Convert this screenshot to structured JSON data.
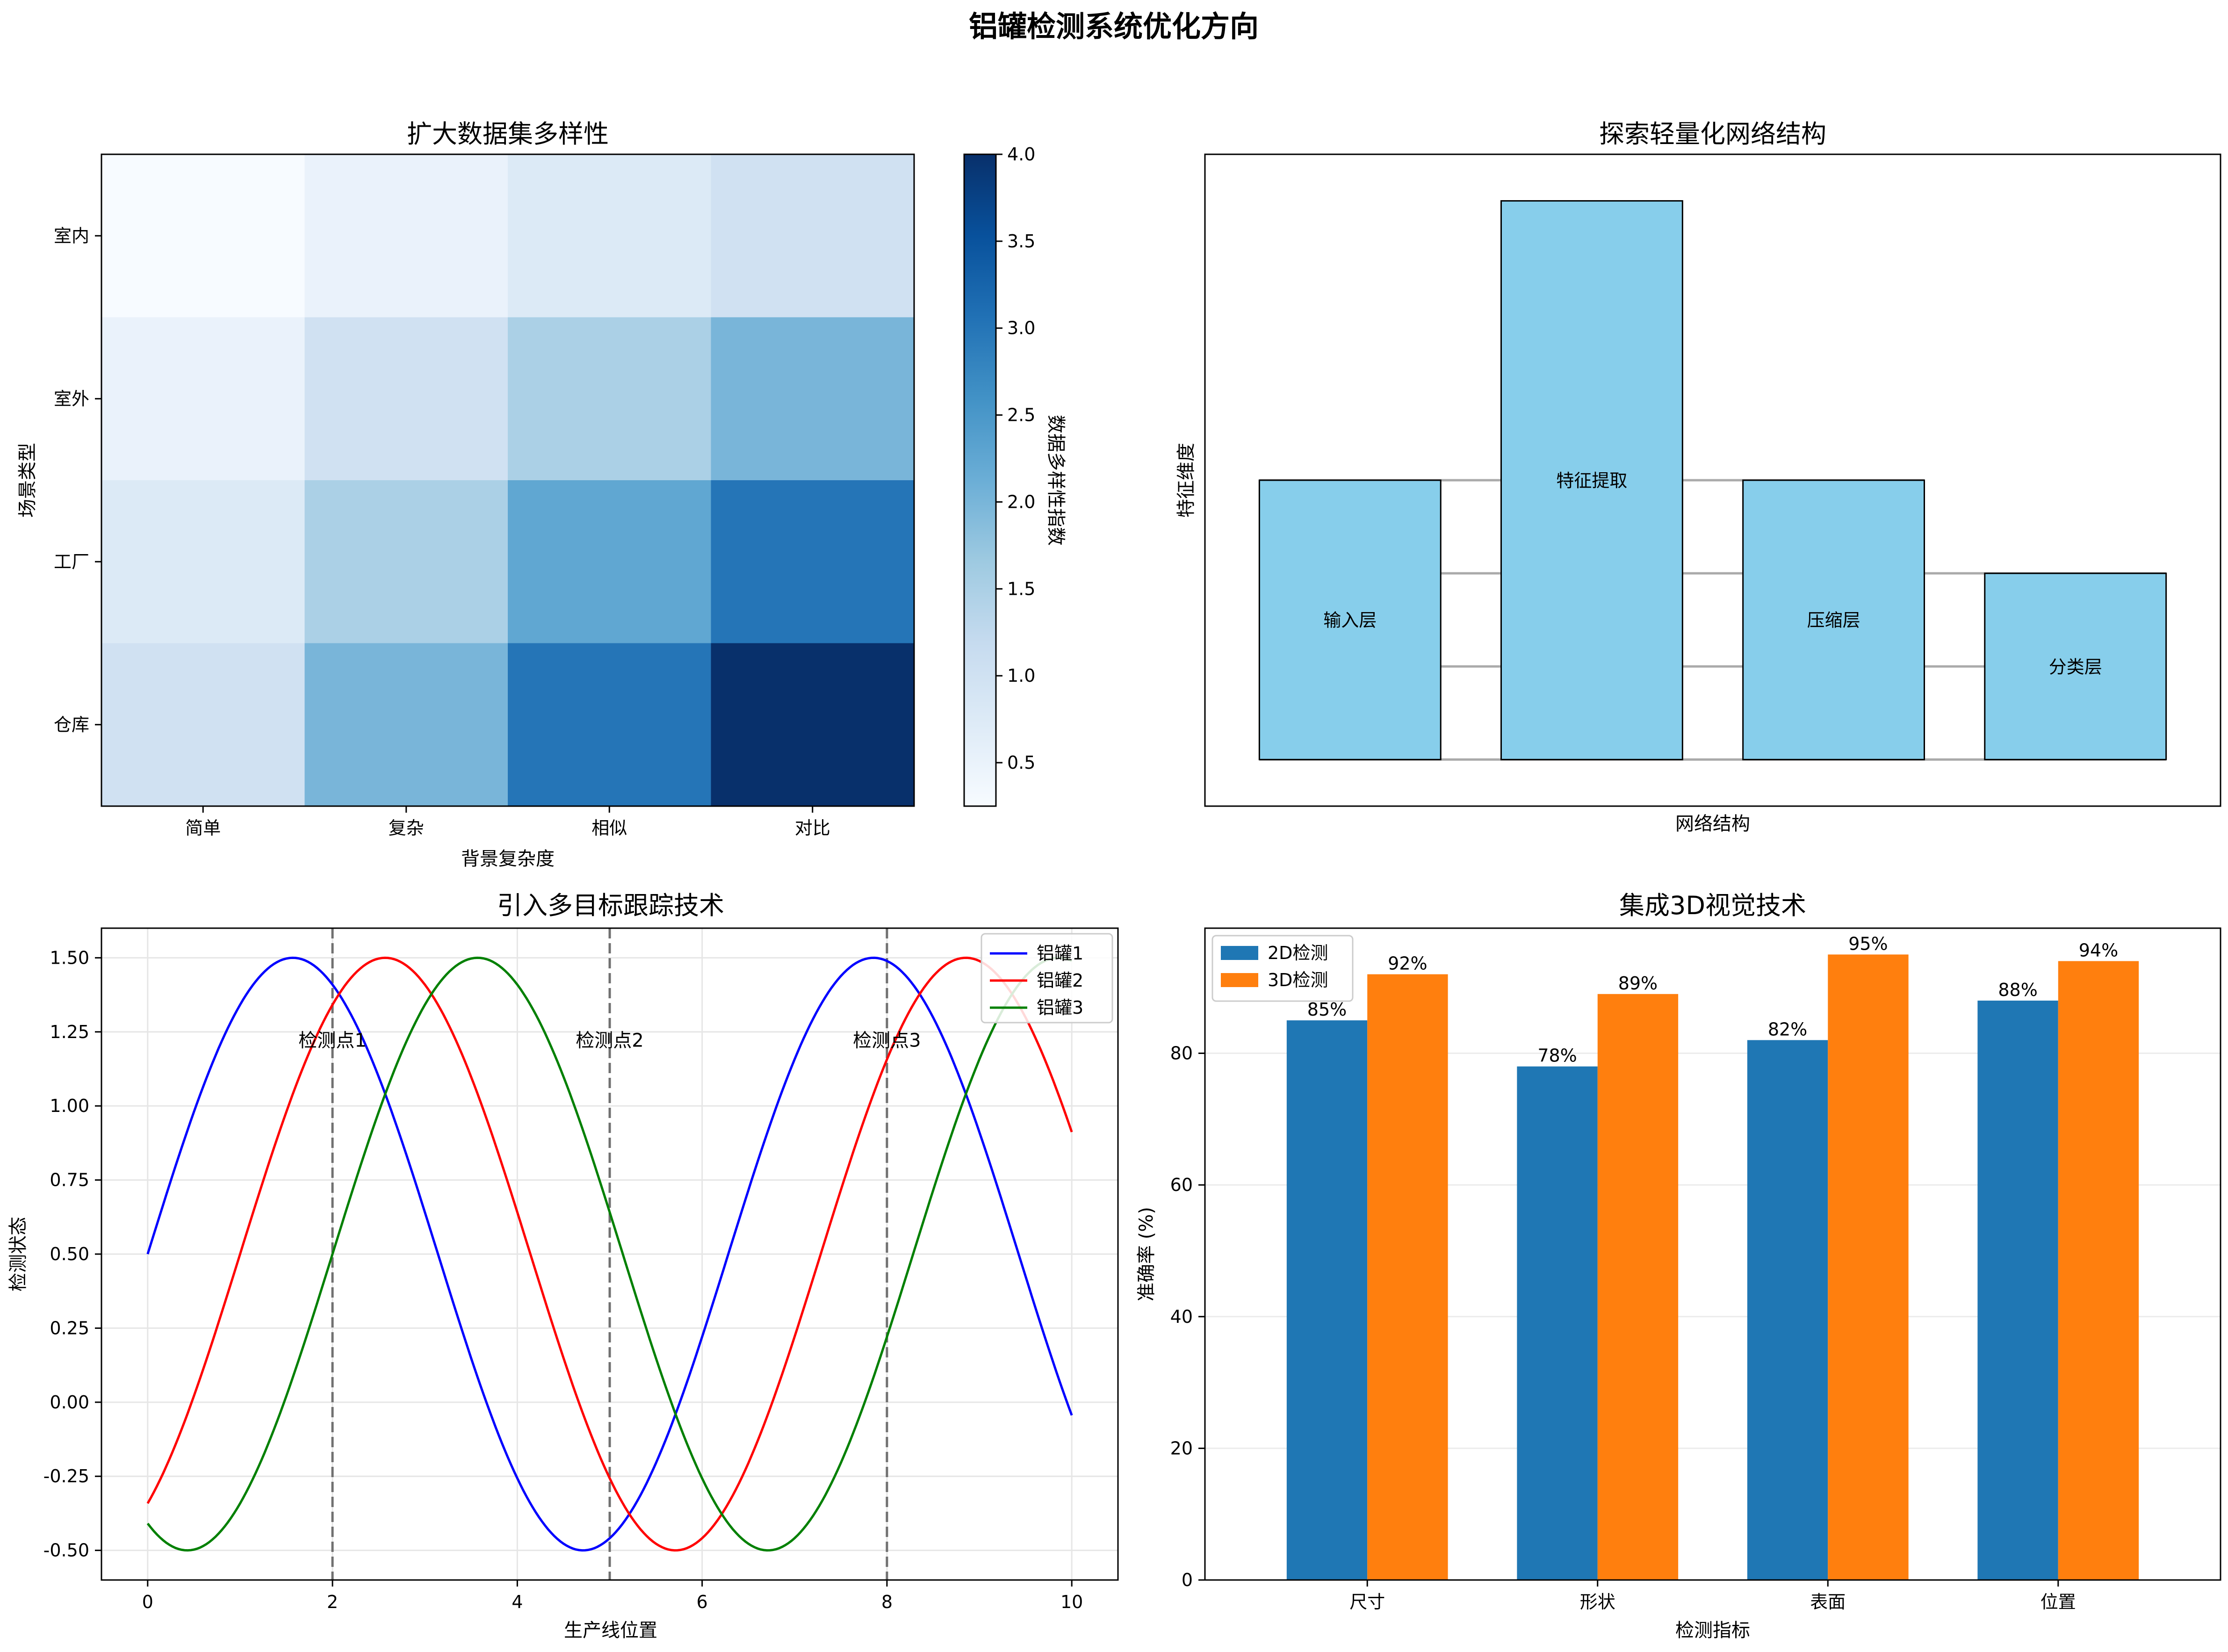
{
  "figure": {
    "title": "铝罐检测系统优化方向"
  },
  "chart_data": [
    {
      "type": "heatmap",
      "title": "扩大数据集多样性",
      "xlabel": "背景复杂度",
      "ylabel": "场景类型",
      "x_categories": [
        "简单",
        "复杂",
        "相似",
        "对比"
      ],
      "y_categories": [
        "室内",
        "室外",
        "工厂",
        "仓库"
      ],
      "values": [
        [
          0.25,
          0.5,
          0.75,
          1.0
        ],
        [
          0.5,
          1.0,
          1.5,
          2.0
        ],
        [
          0.75,
          1.5,
          2.25,
          3.0
        ],
        [
          1.0,
          2.0,
          3.0,
          4.0
        ]
      ],
      "colorbar": {
        "label": "数据多样性指数",
        "range": [
          0.25,
          4.0
        ],
        "ticks": [
          "0.5",
          "1.0",
          "1.5",
          "2.0",
          "2.5",
          "3.0",
          "3.5",
          "4.0"
        ],
        "tick_values": [
          0.5,
          1.0,
          1.5,
          2.0,
          2.5,
          3.0,
          3.5,
          4.0
        ]
      }
    },
    {
      "type": "bar",
      "title": "探索轻量化网络结构",
      "xlabel": "网络结构",
      "ylabel": "特征维度",
      "categories": [
        "输入层",
        "特征提取",
        "压缩层",
        "分类层"
      ],
      "values": [
        3,
        6,
        3,
        2
      ],
      "ylim": [
        -0.5,
        6.5
      ],
      "bar_color": "#87ceeb",
      "edge_color": "#000000",
      "connector_color": "#aaaaaa"
    },
    {
      "type": "line",
      "title": "引入多目标跟踪技术",
      "xlabel": "生产线位置",
      "ylabel": "检测状态",
      "xlim": [
        -0.5,
        10.5
      ],
      "ylim": [
        -0.6,
        1.6
      ],
      "x_ticks": [
        "0",
        "2",
        "4",
        "6",
        "8",
        "10"
      ],
      "x_tick_values": [
        0,
        2,
        4,
        6,
        8,
        10
      ],
      "y_ticks": [
        "-0.50",
        "-0.25",
        "0.00",
        "0.25",
        "0.50",
        "0.75",
        "1.00",
        "1.25",
        "1.50"
      ],
      "y_tick_values": [
        -0.5,
        -0.25,
        0,
        0.25,
        0.5,
        0.75,
        1.0,
        1.25,
        1.5
      ],
      "x_range": [
        0,
        10
      ],
      "series": [
        {
          "name": "铝罐1",
          "color": "#0000ff",
          "offset": 0,
          "amplitude": 1,
          "baseline": 0.5
        },
        {
          "name": "铝罐2",
          "color": "#ff0000",
          "offset": 1,
          "amplitude": 1,
          "baseline": 0.5
        },
        {
          "name": "铝罐3",
          "color": "#008000",
          "offset": 2,
          "amplitude": 1,
          "baseline": 0.5
        }
      ],
      "checkpoints": [
        {
          "x": 2,
          "label": "检测点1"
        },
        {
          "x": 5,
          "label": "检测点2"
        },
        {
          "x": 8,
          "label": "检测点3"
        }
      ],
      "checkpoint_label_y": 1.2,
      "grid": true,
      "legend": "upper right"
    },
    {
      "type": "bar",
      "title": "集成3D视觉技术",
      "xlabel": "检测指标",
      "ylabel": "准确率 (%)",
      "categories": [
        "尺寸",
        "形状",
        "表面",
        "位置"
      ],
      "ylim": [
        0,
        99
      ],
      "y_ticks": [
        "0",
        "20",
        "40",
        "60",
        "80"
      ],
      "y_tick_values": [
        0,
        20,
        40,
        60,
        80
      ],
      "series": [
        {
          "name": "2D检测",
          "color": "#1f77b4",
          "values": [
            85,
            78,
            82,
            88
          ],
          "labels": [
            "85%",
            "78%",
            "82%",
            "88%"
          ]
        },
        {
          "name": "3D检测",
          "color": "#ff7f0e",
          "values": [
            92,
            89,
            95,
            94
          ],
          "labels": [
            "92%",
            "89%",
            "95%",
            "94%"
          ]
        }
      ],
      "grid": true,
      "legend": "upper left"
    }
  ]
}
